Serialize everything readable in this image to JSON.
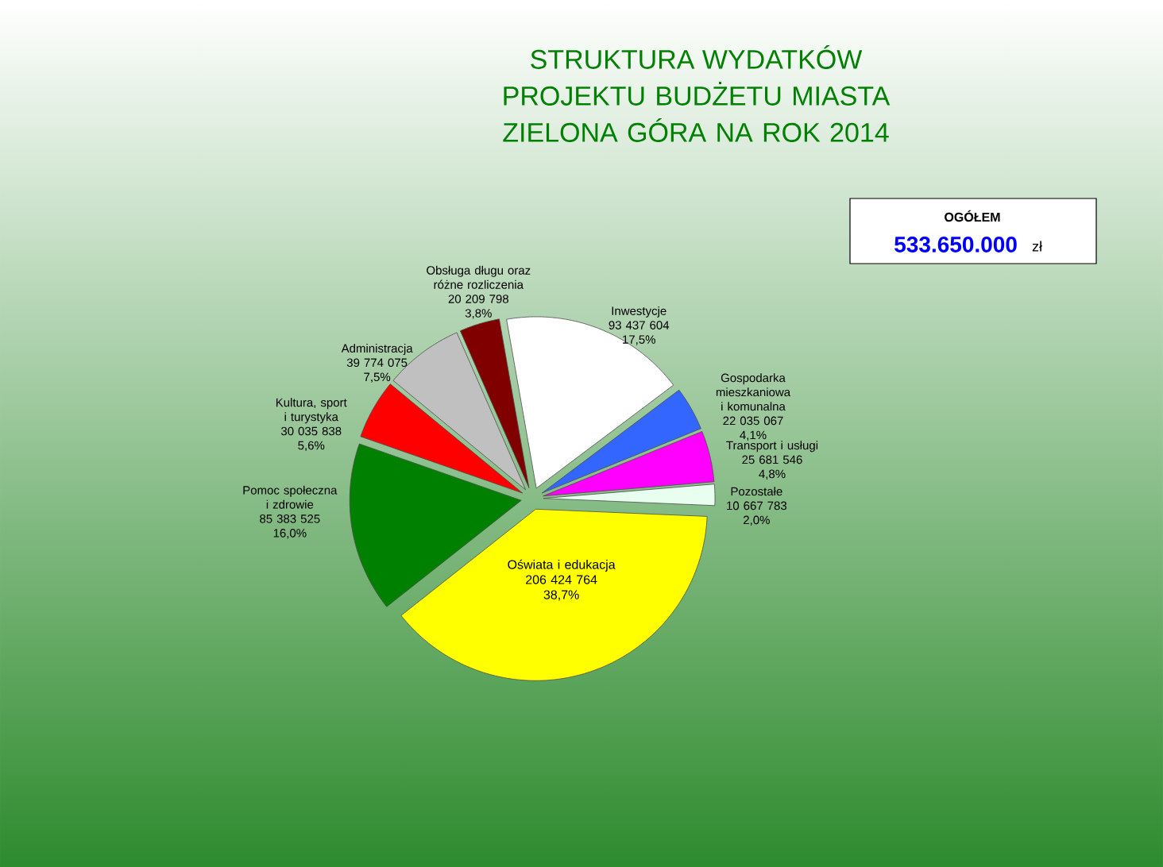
{
  "chart_data": {
    "type": "pie",
    "title": "STRUKTURA WYDATKÓW",
    "subtitle": "PROJEKTU BUDŻETU MIASTA ZIELONA GÓRA NA ROK 2014",
    "categories": [
      "Inwestycje",
      "Gospodarka mieszkaniowa i komunalna",
      "Transport i usługi",
      "Pozostałe",
      "Oświata i edukacja",
      "Pomoc społeczna i zdrowie",
      "Kultura, sport i turystyka",
      "Administracja",
      "Obsługa długu oraz różne rozliczenia"
    ],
    "values": [
      93437604,
      22035067,
      25681546,
      10667783,
      206424764,
      85383525,
      30035838,
      39774075,
      20209798
    ],
    "value_labels": [
      "93 437 604",
      "22 035 067",
      "25 681 546",
      "10 667 783",
      "206 424 764",
      "85 383 525",
      "30 035 838",
      "39 774 075",
      "20 209 798"
    ],
    "colors": [
      "#ffffff",
      "#3366ff",
      "#ff00ff",
      "#e8fff0",
      "#ffff00",
      "#008000",
      "#ff0000",
      "#c0c0c0",
      "#800000"
    ],
    "annotations": [
      "OGÓŁEM",
      "533.650.000",
      "zł",
      {
        "text": "17,5%",
        "x": "Inwestycje"
      },
      {
        "text": "4,1%",
        "x": "Gospodarka mieszkaniowa i komunalna"
      },
      {
        "text": "4,8%",
        "x": "Transport i usługi"
      },
      {
        "text": "2,0%",
        "x": "Pozostałe"
      },
      {
        "text": "38,7%",
        "x": "Oświata i edukacja"
      },
      {
        "text": "16,0%",
        "x": "Pomoc społeczna i zdrowie"
      },
      {
        "text": "5,6%",
        "x": "Kultura, sport i turystyka"
      },
      {
        "text": "7,5%",
        "x": "Administracja"
      },
      {
        "text": "3,8%",
        "x": "Obsługa długu oraz różne rozliczenia"
      }
    ]
  }
}
